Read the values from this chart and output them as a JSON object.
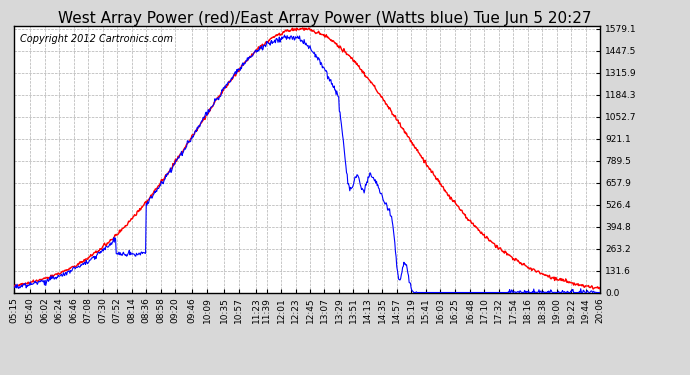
{
  "title": "West Array Power (red)/East Array Power (Watts blue) Tue Jun 5 20:27",
  "copyright": "Copyright 2012 Cartronics.com",
  "ymin": 0.0,
  "ymax": 1579.1,
  "yticks": [
    0.0,
    131.6,
    263.2,
    394.8,
    526.4,
    657.9,
    789.5,
    921.1,
    1052.7,
    1184.3,
    1315.9,
    1447.5,
    1579.1
  ],
  "xtick_labels": [
    "05:15",
    "05:40",
    "06:02",
    "06:24",
    "06:46",
    "07:08",
    "07:30",
    "07:52",
    "08:14",
    "08:36",
    "08:58",
    "09:20",
    "09:46",
    "10:09",
    "10:35",
    "10:57",
    "11:23",
    "11:39",
    "12:01",
    "12:23",
    "12:45",
    "13:07",
    "13:29",
    "13:51",
    "14:13",
    "14:35",
    "14:57",
    "15:19",
    "15:41",
    "16:03",
    "16:25",
    "16:48",
    "17:10",
    "17:32",
    "17:54",
    "18:16",
    "18:38",
    "19:00",
    "19:22",
    "19:44",
    "20:06"
  ],
  "background_color": "#d8d8d8",
  "plot_bg_color": "#ffffff",
  "grid_color": "#b0b0b0",
  "red_color": "#ff0000",
  "blue_color": "#0000ff",
  "title_fontsize": 11,
  "copyright_fontsize": 7,
  "tick_fontsize": 6.5,
  "spike_data": [
    [
      825,
      400,
      8
    ],
    [
      845,
      200,
      6
    ],
    [
      900,
      300,
      5
    ],
    [
      920,
      250,
      8
    ],
    [
      945,
      350,
      10
    ],
    [
      960,
      400,
      12
    ],
    [
      970,
      500,
      8
    ],
    [
      980,
      350,
      6
    ],
    [
      990,
      450,
      10
    ],
    [
      1000,
      500,
      15
    ],
    [
      1010,
      480,
      20
    ],
    [
      1025,
      150,
      8
    ]
  ]
}
